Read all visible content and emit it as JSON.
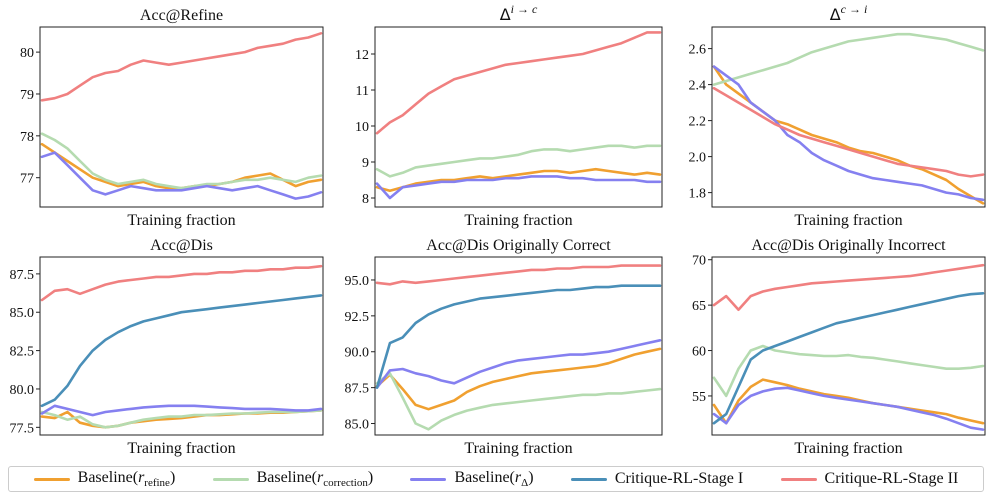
{
  "chart_data": [
    {
      "type": "line",
      "title": "Acc@Refine",
      "xlabel": "Training fraction",
      "ylabel": "",
      "ylim": [
        76.3,
        80.6
      ],
      "yticks": [
        77,
        78,
        79,
        80
      ],
      "series": [
        {
          "key": "baseline_refine",
          "values": [
            77.8,
            77.6,
            77.4,
            77.2,
            77.0,
            76.9,
            76.8,
            76.85,
            76.9,
            76.8,
            76.75,
            76.75,
            76.8,
            76.8,
            76.85,
            76.9,
            77.0,
            77.05,
            77.1,
            76.95,
            76.8,
            76.9,
            76.95
          ]
        },
        {
          "key": "baseline_correction",
          "values": [
            78.05,
            77.9,
            77.7,
            77.4,
            77.1,
            76.95,
            76.85,
            76.9,
            76.95,
            76.85,
            76.8,
            76.75,
            76.8,
            76.85,
            76.85,
            76.9,
            76.95,
            76.95,
            77.0,
            76.95,
            76.9,
            77.0,
            77.05
          ]
        },
        {
          "key": "baseline_delta",
          "values": [
            77.5,
            77.6,
            77.3,
            77.0,
            76.7,
            76.6,
            76.7,
            76.8,
            76.75,
            76.7,
            76.7,
            76.7,
            76.75,
            76.8,
            76.75,
            76.7,
            76.75,
            76.8,
            76.7,
            76.6,
            76.5,
            76.55,
            76.65
          ]
        },
        {
          "key": "critique_stage1",
          "values": []
        },
        {
          "key": "critique_stage2",
          "values": [
            78.85,
            78.9,
            79.0,
            79.2,
            79.4,
            79.5,
            79.55,
            79.7,
            79.8,
            79.75,
            79.7,
            79.75,
            79.8,
            79.85,
            79.9,
            79.95,
            80.0,
            80.1,
            80.15,
            80.2,
            80.3,
            80.35,
            80.45
          ]
        }
      ]
    },
    {
      "type": "line",
      "title": "Δ i→c",
      "xlabel": "Training fraction",
      "ylabel": "",
      "ylim": [
        7.75,
        12.75
      ],
      "yticks": [
        8,
        9,
        10,
        11,
        12
      ],
      "series": [
        {
          "key": "baseline_refine",
          "values": [
            8.3,
            8.2,
            8.3,
            8.4,
            8.45,
            8.5,
            8.5,
            8.55,
            8.6,
            8.55,
            8.6,
            8.65,
            8.7,
            8.75,
            8.75,
            8.7,
            8.75,
            8.8,
            8.75,
            8.7,
            8.65,
            8.7,
            8.65
          ]
        },
        {
          "key": "baseline_correction",
          "values": [
            8.8,
            8.6,
            8.7,
            8.85,
            8.9,
            8.95,
            9.0,
            9.05,
            9.1,
            9.1,
            9.15,
            9.2,
            9.3,
            9.35,
            9.35,
            9.3,
            9.35,
            9.4,
            9.45,
            9.45,
            9.4,
            9.45,
            9.45
          ]
        },
        {
          "key": "baseline_delta",
          "values": [
            8.4,
            8.0,
            8.3,
            8.35,
            8.4,
            8.45,
            8.45,
            8.5,
            8.5,
            8.5,
            8.55,
            8.55,
            8.6,
            8.6,
            8.6,
            8.55,
            8.55,
            8.5,
            8.5,
            8.5,
            8.5,
            8.45,
            8.45
          ]
        },
        {
          "key": "critique_stage1",
          "values": []
        },
        {
          "key": "critique_stage2",
          "values": [
            9.8,
            10.1,
            10.3,
            10.6,
            10.9,
            11.1,
            11.3,
            11.4,
            11.5,
            11.6,
            11.7,
            11.75,
            11.8,
            11.85,
            11.9,
            11.95,
            12.0,
            12.1,
            12.2,
            12.3,
            12.45,
            12.6,
            12.6
          ]
        }
      ]
    },
    {
      "type": "line",
      "title": "Δ c→i",
      "xlabel": "Training fraction",
      "ylabel": "",
      "ylim": [
        1.72,
        2.72
      ],
      "yticks": [
        1.8,
        2.0,
        2.2,
        2.4,
        2.6
      ],
      "series": [
        {
          "key": "baseline_refine",
          "values": [
            2.5,
            2.4,
            2.35,
            2.3,
            2.25,
            2.2,
            2.18,
            2.15,
            2.12,
            2.1,
            2.08,
            2.05,
            2.03,
            2.02,
            2.0,
            1.98,
            1.95,
            1.93,
            1.9,
            1.87,
            1.82,
            1.78,
            1.74
          ]
        },
        {
          "key": "baseline_correction",
          "values": [
            2.4,
            2.42,
            2.44,
            2.46,
            2.48,
            2.5,
            2.52,
            2.55,
            2.58,
            2.6,
            2.62,
            2.64,
            2.65,
            2.66,
            2.67,
            2.68,
            2.68,
            2.67,
            2.66,
            2.65,
            2.63,
            2.61,
            2.59
          ]
        },
        {
          "key": "baseline_delta",
          "values": [
            2.5,
            2.45,
            2.4,
            2.3,
            2.25,
            2.2,
            2.12,
            2.08,
            2.02,
            1.98,
            1.95,
            1.92,
            1.9,
            1.88,
            1.87,
            1.86,
            1.85,
            1.84,
            1.82,
            1.8,
            1.79,
            1.77,
            1.76
          ]
        },
        {
          "key": "critique_stage1",
          "values": []
        },
        {
          "key": "critique_stage2",
          "values": [
            2.38,
            2.34,
            2.3,
            2.26,
            2.22,
            2.18,
            2.15,
            2.12,
            2.1,
            2.08,
            2.06,
            2.04,
            2.02,
            2.0,
            1.98,
            1.96,
            1.95,
            1.94,
            1.93,
            1.92,
            1.9,
            1.89,
            1.9
          ]
        }
      ]
    },
    {
      "type": "line",
      "title": "Acc@Dis",
      "xlabel": "Training fraction",
      "ylabel": "",
      "ylim": [
        77.0,
        88.6
      ],
      "yticks": [
        77.5,
        80.0,
        82.5,
        85.0,
        87.5
      ],
      "series": [
        {
          "key": "baseline_refine",
          "values": [
            78.2,
            78.1,
            78.5,
            77.8,
            77.6,
            77.5,
            77.6,
            77.8,
            77.9,
            78.0,
            78.05,
            78.1,
            78.2,
            78.3,
            78.3,
            78.35,
            78.4,
            78.4,
            78.45,
            78.45,
            78.5,
            78.55,
            78.6
          ]
        },
        {
          "key": "baseline_correction",
          "values": [
            78.5,
            78.3,
            78.0,
            78.2,
            77.7,
            77.5,
            77.6,
            77.8,
            78.0,
            78.1,
            78.2,
            78.2,
            78.3,
            78.3,
            78.35,
            78.4,
            78.4,
            78.45,
            78.5,
            78.5,
            78.5,
            78.55,
            78.6
          ]
        },
        {
          "key": "baseline_delta",
          "values": [
            78.4,
            78.9,
            78.7,
            78.5,
            78.3,
            78.5,
            78.6,
            78.7,
            78.8,
            78.85,
            78.9,
            78.9,
            78.9,
            78.85,
            78.8,
            78.75,
            78.7,
            78.7,
            78.7,
            78.65,
            78.6,
            78.6,
            78.7
          ]
        },
        {
          "key": "critique_stage1",
          "values": [
            78.9,
            79.3,
            80.2,
            81.5,
            82.5,
            83.2,
            83.7,
            84.1,
            84.4,
            84.6,
            84.8,
            85.0,
            85.1,
            85.2,
            85.3,
            85.4,
            85.5,
            85.6,
            85.7,
            85.8,
            85.9,
            86.0,
            86.1
          ]
        },
        {
          "key": "critique_stage2",
          "values": [
            85.8,
            86.4,
            86.5,
            86.2,
            86.5,
            86.8,
            87.0,
            87.1,
            87.2,
            87.3,
            87.3,
            87.4,
            87.5,
            87.5,
            87.6,
            87.6,
            87.7,
            87.7,
            87.8,
            87.8,
            87.9,
            87.9,
            88.0
          ]
        }
      ]
    },
    {
      "type": "line",
      "title": "Acc@Dis Originally Correct",
      "xlabel": "Training fraction",
      "ylabel": "",
      "ylim": [
        84.2,
        96.6
      ],
      "yticks": [
        85.0,
        87.5,
        90.0,
        92.5,
        95.0
      ],
      "series": [
        {
          "key": "baseline_refine",
          "values": [
            87.6,
            88.4,
            87.4,
            86.3,
            86.0,
            86.3,
            86.6,
            87.2,
            87.6,
            87.9,
            88.1,
            88.3,
            88.5,
            88.6,
            88.7,
            88.8,
            88.9,
            89.0,
            89.2,
            89.5,
            89.8,
            90.0,
            90.2
          ]
        },
        {
          "key": "baseline_correction",
          "values": [
            87.8,
            88.5,
            86.8,
            85.0,
            84.6,
            85.2,
            85.6,
            85.9,
            86.1,
            86.3,
            86.4,
            86.5,
            86.6,
            86.7,
            86.8,
            86.9,
            87.0,
            87.0,
            87.1,
            87.1,
            87.2,
            87.3,
            87.4
          ]
        },
        {
          "key": "baseline_delta",
          "values": [
            87.5,
            88.7,
            88.8,
            88.5,
            88.3,
            88.0,
            87.8,
            88.2,
            88.6,
            88.9,
            89.2,
            89.4,
            89.5,
            89.6,
            89.7,
            89.8,
            89.8,
            89.9,
            90.0,
            90.2,
            90.4,
            90.6,
            90.8
          ]
        },
        {
          "key": "critique_stage1",
          "values": [
            87.5,
            90.6,
            91.0,
            92.0,
            92.6,
            93.0,
            93.3,
            93.5,
            93.7,
            93.8,
            93.9,
            94.0,
            94.1,
            94.2,
            94.3,
            94.3,
            94.4,
            94.5,
            94.5,
            94.6,
            94.6,
            94.6,
            94.6
          ]
        },
        {
          "key": "critique_stage2",
          "values": [
            94.8,
            94.7,
            94.9,
            94.8,
            94.9,
            95.0,
            95.1,
            95.2,
            95.3,
            95.4,
            95.5,
            95.6,
            95.7,
            95.7,
            95.8,
            95.8,
            95.9,
            95.9,
            95.9,
            96.0,
            96.0,
            96.0,
            96.0
          ]
        }
      ]
    },
    {
      "type": "line",
      "title": "Acc@Dis Originally Incorrect",
      "xlabel": "Training fraction",
      "ylabel": "",
      "ylim": [
        50.7,
        70.3
      ],
      "yticks": [
        55,
        60,
        65,
        70
      ],
      "series": [
        {
          "key": "baseline_refine",
          "values": [
            54.0,
            52.0,
            54.5,
            56.0,
            56.8,
            56.5,
            56.2,
            55.8,
            55.5,
            55.2,
            55.0,
            54.8,
            54.5,
            54.2,
            54.0,
            53.8,
            53.6,
            53.4,
            53.2,
            53.0,
            52.6,
            52.3,
            52.0
          ]
        },
        {
          "key": "baseline_correction",
          "values": [
            57.0,
            55.0,
            58.0,
            60.0,
            60.5,
            60.0,
            59.8,
            59.6,
            59.5,
            59.4,
            59.4,
            59.5,
            59.3,
            59.2,
            59.0,
            58.8,
            58.6,
            58.4,
            58.2,
            58.0,
            58.0,
            58.1,
            58.3
          ]
        },
        {
          "key": "baseline_delta",
          "values": [
            53.0,
            52.0,
            54.0,
            55.0,
            55.5,
            55.8,
            55.9,
            55.6,
            55.3,
            55.0,
            54.8,
            54.6,
            54.4,
            54.2,
            54.0,
            53.8,
            53.5,
            53.2,
            52.9,
            52.5,
            52.0,
            51.5,
            51.3
          ]
        },
        {
          "key": "critique_stage1",
          "values": [
            52.0,
            53.0,
            56.0,
            59.0,
            60.0,
            60.5,
            61.0,
            61.5,
            62.0,
            62.5,
            63.0,
            63.3,
            63.6,
            63.9,
            64.2,
            64.5,
            64.8,
            65.1,
            65.4,
            65.7,
            66.0,
            66.2,
            66.3
          ]
        },
        {
          "key": "critique_stage2",
          "values": [
            65.0,
            66.0,
            64.5,
            66.0,
            66.5,
            66.8,
            67.0,
            67.2,
            67.4,
            67.5,
            67.6,
            67.7,
            67.8,
            67.9,
            68.0,
            68.1,
            68.2,
            68.4,
            68.6,
            68.8,
            69.0,
            69.2,
            69.4
          ]
        }
      ]
    }
  ],
  "legend": [
    {
      "key": "baseline_refine",
      "text": "Baseline(",
      "sym": "r",
      "sub": "refine",
      "close": ")",
      "color": "#f0a030"
    },
    {
      "key": "baseline_correction",
      "text": "Baseline(",
      "sym": "r",
      "sub": "correction",
      "close": ")",
      "color": "#b5dbb0"
    },
    {
      "key": "baseline_delta",
      "text": "Baseline(",
      "sym": "r",
      "sub": "Δ",
      "close": ")",
      "color": "#8580f0"
    },
    {
      "key": "critique_stage1",
      "text": "Critique-RL-Stage I",
      "sym": "",
      "sub": "",
      "close": "",
      "color": "#4a8fb8"
    },
    {
      "key": "critique_stage2",
      "text": "Critique-RL-Stage II",
      "sym": "",
      "sub": "",
      "close": "",
      "color": "#f08080"
    }
  ]
}
